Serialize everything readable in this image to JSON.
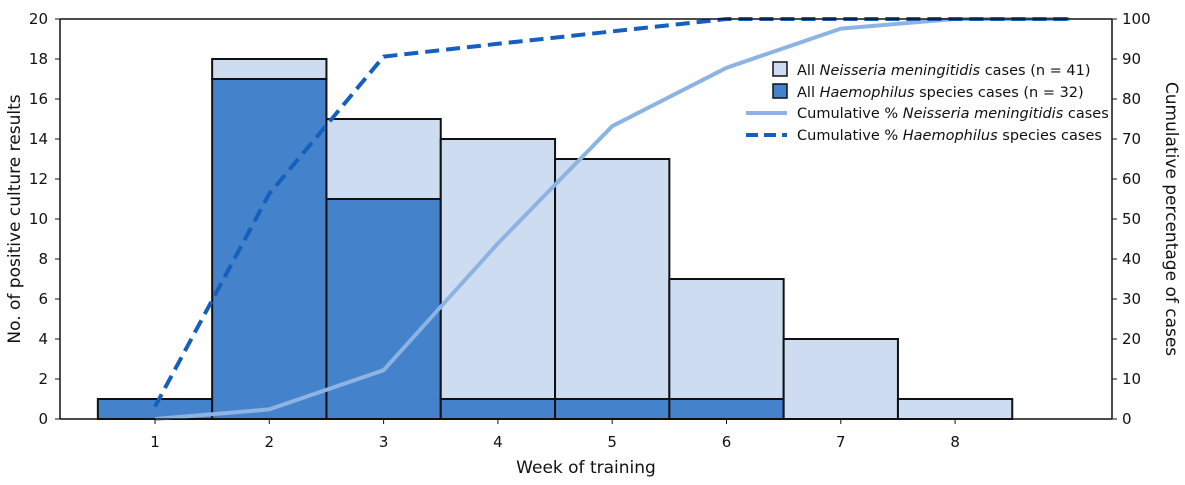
{
  "chart_data": {
    "type": "bar",
    "stacked": true,
    "categories": [
      1,
      2,
      3,
      4,
      5,
      6,
      7,
      8
    ],
    "xlabel": "Week of training",
    "ylabel": "No. of positive culture results",
    "y2label": "Cumulative percentage of cases",
    "ylim": [
      0,
      20
    ],
    "y2lim": [
      0,
      100
    ],
    "yticks": [
      0,
      2,
      4,
      6,
      8,
      10,
      12,
      14,
      16,
      18,
      20
    ],
    "y2ticks": [
      0,
      10,
      20,
      30,
      40,
      50,
      60,
      70,
      80,
      90,
      100
    ],
    "grid": false,
    "legend_position": "top-right",
    "series": [
      {
        "name": "All Neisseria meningitidis cases (n = 41)",
        "kind": "bar",
        "color": "#cddcf0",
        "values": [
          0,
          1,
          4,
          13,
          12,
          6,
          4,
          1
        ]
      },
      {
        "name": "All Haemophilus species cases (n = 32)",
        "kind": "bar",
        "color": "#4482cb",
        "values": [
          1,
          17,
          11,
          1,
          1,
          1,
          0,
          0
        ]
      },
      {
        "name": "Cumulative % Neisseria meningitidis cases",
        "kind": "line",
        "axis": "right",
        "color": "#8db3e2",
        "dash": false,
        "x": [
          1,
          2,
          3,
          4,
          5,
          6,
          7,
          8,
          9
        ],
        "values": [
          0,
          2.4,
          12.2,
          43.9,
          73.2,
          87.8,
          97.6,
          100,
          100
        ]
      },
      {
        "name": "Cumulative % Haemophilus species cases",
        "kind": "line",
        "axis": "right",
        "color": "#1560bd",
        "dash": true,
        "x": [
          1,
          2,
          3,
          4,
          5,
          6,
          7,
          8,
          9
        ],
        "values": [
          3.1,
          56.3,
          90.6,
          93.8,
          96.9,
          100,
          100,
          100,
          100
        ]
      }
    ]
  },
  "legend": [
    {
      "pre": "All ",
      "it": "Neisseria meningitidis",
      "post": " cases (n = 41)"
    },
    {
      "pre": "All ",
      "it": "Haemophilus",
      "post": " species cases (n = 32)"
    },
    {
      "pre": "Cumulative % ",
      "it": "Neisseria meningitidis",
      "post": " cases"
    },
    {
      "pre": "Cumulative % ",
      "it": "Haemophilus",
      "post": " species cases"
    }
  ]
}
